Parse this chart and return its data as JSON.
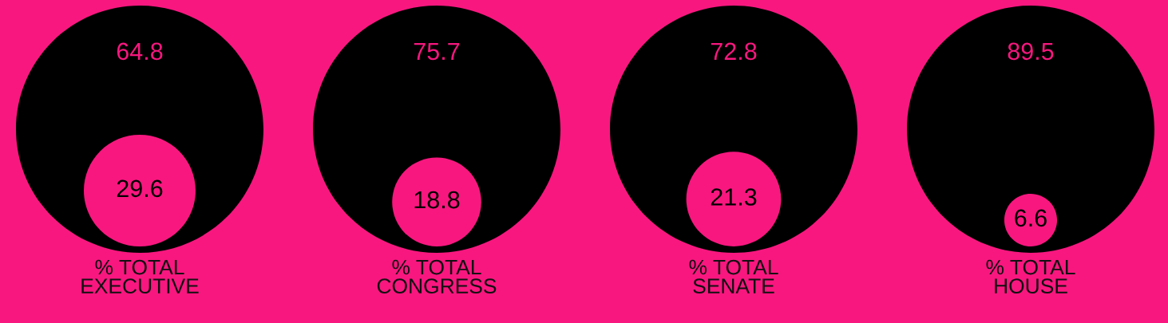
{
  "chart_data": {
    "type": "other",
    "categories": [
      "% TOTAL\nEXECUTIVE",
      "% TOTAL\nCONGRESS",
      "% TOTAL\nSENATE",
      "% TOTAL\nHOUSE"
    ],
    "series": [
      {
        "color": "#000000",
        "values": [
          64.8,
          75.7,
          72.8,
          89.5
        ]
      },
      {
        "color": "#f8177f",
        "values": [
          29.6,
          18.8,
          21.3,
          6.6
        ]
      }
    ],
    "data_labels": true
  }
}
